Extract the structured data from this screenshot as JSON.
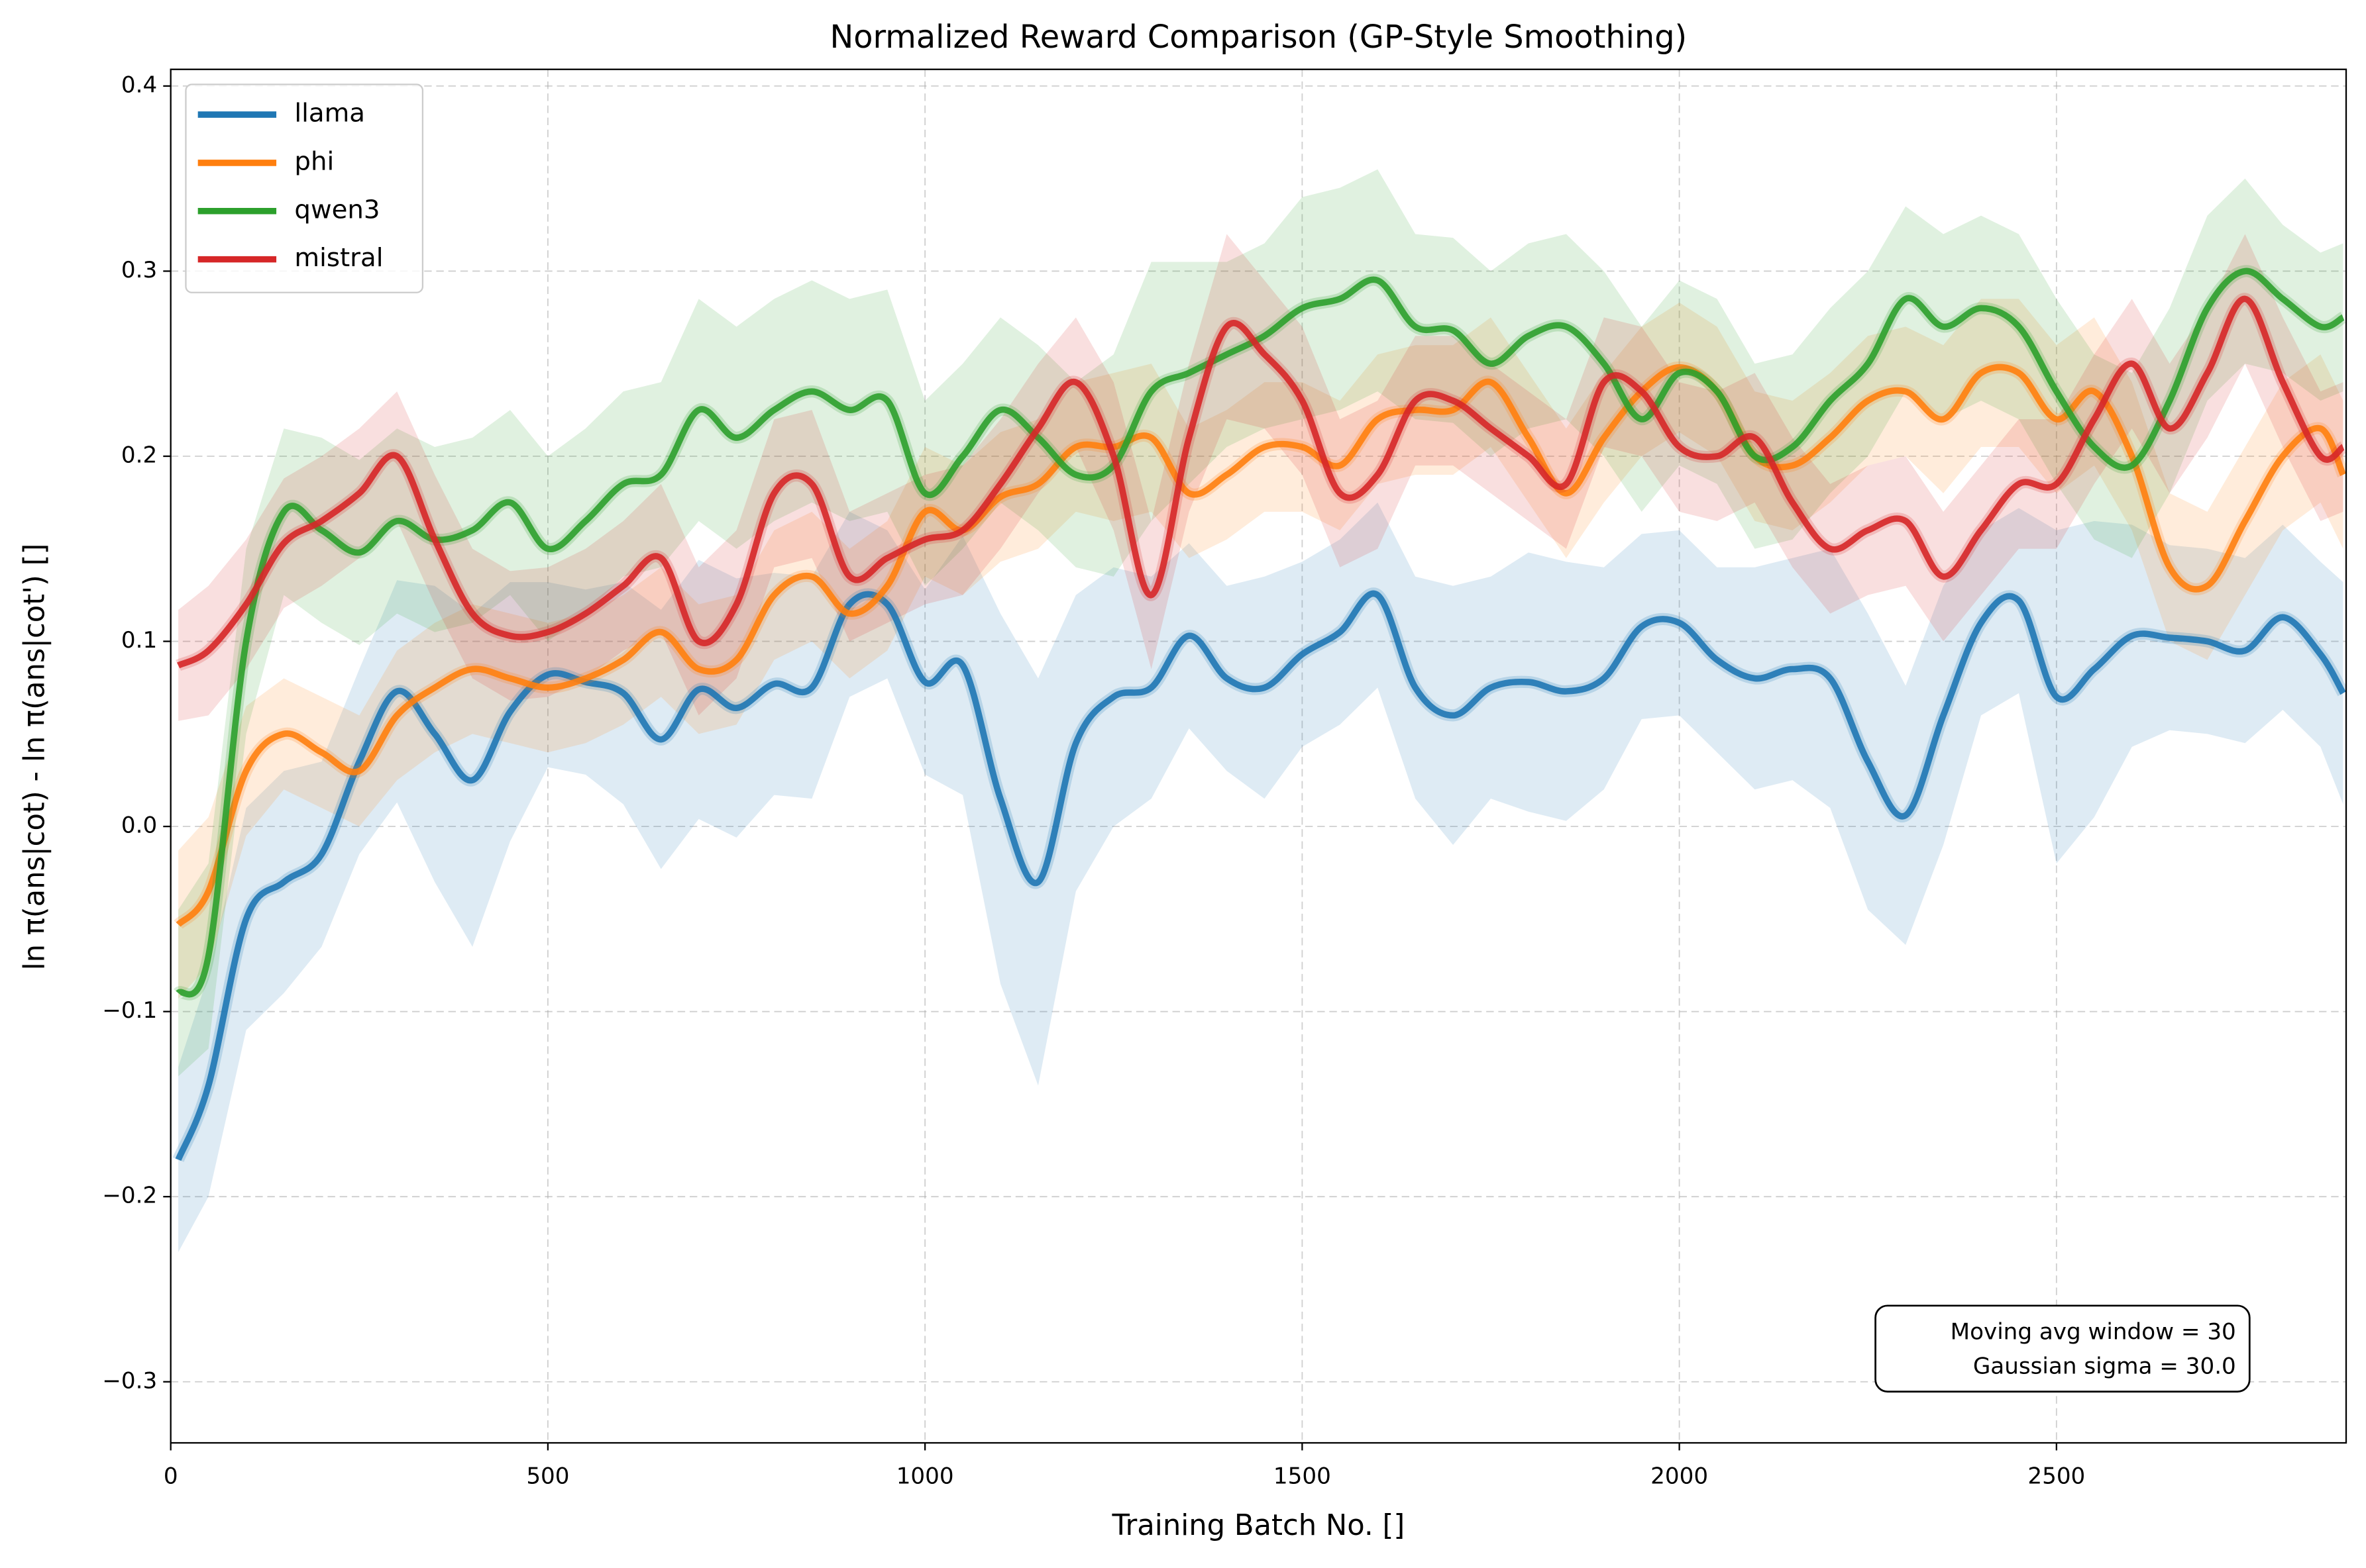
{
  "chart_data": {
    "type": "line",
    "title": "Normalized Reward Comparison (GP-Style Smoothing)",
    "xlabel": "Training Batch No. []",
    "ylabel": "ln π(ans|cot) - ln π(ans|cot') []",
    "annotations": [
      "Moving avg window = 30",
      "Gaussian sigma = 30.0"
    ],
    "x": [
      10,
      50,
      100,
      150,
      200,
      250,
      300,
      350,
      400,
      450,
      500,
      550,
      600,
      650,
      700,
      750,
      800,
      850,
      900,
      950,
      1000,
      1050,
      1100,
      1150,
      1200,
      1250,
      1300,
      1350,
      1400,
      1450,
      1500,
      1550,
      1600,
      1650,
      1700,
      1750,
      1800,
      1850,
      1900,
      1950,
      2000,
      2050,
      2100,
      2150,
      2200,
      2250,
      2300,
      2350,
      2400,
      2450,
      2500,
      2550,
      2600,
      2650,
      2700,
      2750,
      2800,
      2850,
      2880
    ],
    "series": [
      {
        "name": "llama",
        "color": "#1f77b4",
        "values": [
          -0.18,
          -0.14,
          -0.05,
          -0.03,
          -0.015,
          0.035,
          0.073,
          0.05,
          0.025,
          0.062,
          0.082,
          0.078,
          0.072,
          0.047,
          0.074,
          0.064,
          0.077,
          0.075,
          0.12,
          0.12,
          0.078,
          0.087,
          0.015,
          -0.03,
          0.045,
          0.07,
          0.075,
          0.103,
          0.08,
          0.075,
          0.093,
          0.105,
          0.125,
          0.075,
          0.06,
          0.075,
          0.078,
          0.073,
          0.08,
          0.108,
          0.11,
          0.09,
          0.08,
          0.085,
          0.08,
          0.035,
          0.006,
          0.06,
          0.11,
          0.122,
          0.07,
          0.085,
          0.103,
          0.102,
          0.1,
          0.095,
          0.113,
          0.093,
          0.072
        ],
        "error": [
          0.05,
          0.06,
          0.06,
          0.06,
          0.05,
          0.05,
          0.06,
          0.08,
          0.09,
          0.07,
          0.05,
          0.05,
          0.06,
          0.07,
          0.07,
          0.07,
          0.06,
          0.06,
          0.05,
          0.04,
          0.05,
          0.07,
          0.1,
          0.11,
          0.08,
          0.07,
          0.06,
          0.05,
          0.05,
          0.06,
          0.05,
          0.05,
          0.05,
          0.06,
          0.07,
          0.06,
          0.07,
          0.07,
          0.06,
          0.05,
          0.05,
          0.05,
          0.06,
          0.06,
          0.07,
          0.08,
          0.07,
          0.07,
          0.05,
          0.05,
          0.09,
          0.08,
          0.06,
          0.05,
          0.05,
          0.05,
          0.05,
          0.05,
          0.06
        ]
      },
      {
        "name": "phi",
        "color": "#ff7f0e",
        "values": [
          -0.053,
          -0.035,
          0.03,
          0.05,
          0.04,
          0.03,
          0.06,
          0.075,
          0.085,
          0.08,
          0.075,
          0.08,
          0.09,
          0.105,
          0.085,
          0.09,
          0.125,
          0.135,
          0.115,
          0.13,
          0.17,
          0.16,
          0.178,
          0.185,
          0.205,
          0.205,
          0.21,
          0.18,
          0.19,
          0.205,
          0.205,
          0.195,
          0.22,
          0.225,
          0.225,
          0.24,
          0.21,
          0.18,
          0.21,
          0.235,
          0.248,
          0.235,
          0.2,
          0.195,
          0.21,
          0.23,
          0.235,
          0.22,
          0.245,
          0.245,
          0.22,
          0.235,
          0.2,
          0.14,
          0.13,
          0.165,
          0.2,
          0.215,
          0.19
        ],
        "error": [
          0.04,
          0.04,
          0.035,
          0.03,
          0.03,
          0.03,
          0.035,
          0.035,
          0.035,
          0.035,
          0.035,
          0.035,
          0.035,
          0.035,
          0.035,
          0.035,
          0.035,
          0.035,
          0.035,
          0.035,
          0.035,
          0.035,
          0.035,
          0.035,
          0.035,
          0.04,
          0.04,
          0.035,
          0.035,
          0.035,
          0.035,
          0.035,
          0.035,
          0.035,
          0.035,
          0.035,
          0.035,
          0.035,
          0.035,
          0.035,
          0.035,
          0.035,
          0.035,
          0.035,
          0.035,
          0.035,
          0.035,
          0.04,
          0.04,
          0.04,
          0.04,
          0.04,
          0.04,
          0.04,
          0.04,
          0.04,
          0.04,
          0.04,
          0.04
        ]
      },
      {
        "name": "qwen3",
        "color": "#2ca02c",
        "values": [
          -0.09,
          -0.07,
          0.1,
          0.17,
          0.16,
          0.148,
          0.165,
          0.155,
          0.16,
          0.175,
          0.15,
          0.165,
          0.185,
          0.19,
          0.225,
          0.21,
          0.225,
          0.235,
          0.225,
          0.23,
          0.18,
          0.2,
          0.225,
          0.21,
          0.19,
          0.195,
          0.235,
          0.245,
          0.255,
          0.265,
          0.28,
          0.285,
          0.295,
          0.27,
          0.268,
          0.25,
          0.265,
          0.27,
          0.25,
          0.22,
          0.245,
          0.235,
          0.2,
          0.205,
          0.23,
          0.25,
          0.285,
          0.27,
          0.28,
          0.27,
          0.235,
          0.205,
          0.195,
          0.23,
          0.28,
          0.3,
          0.285,
          0.27,
          0.275
        ],
        "error": [
          0.045,
          0.05,
          0.05,
          0.045,
          0.05,
          0.05,
          0.05,
          0.05,
          0.05,
          0.05,
          0.05,
          0.05,
          0.05,
          0.05,
          0.06,
          0.06,
          0.06,
          0.06,
          0.06,
          0.06,
          0.05,
          0.05,
          0.05,
          0.05,
          0.05,
          0.06,
          0.07,
          0.06,
          0.05,
          0.05,
          0.06,
          0.06,
          0.06,
          0.05,
          0.05,
          0.05,
          0.05,
          0.05,
          0.05,
          0.05,
          0.05,
          0.05,
          0.05,
          0.05,
          0.05,
          0.05,
          0.05,
          0.05,
          0.05,
          0.05,
          0.05,
          0.05,
          0.05,
          0.05,
          0.05,
          0.05,
          0.04,
          0.04,
          0.04
        ]
      },
      {
        "name": "mistral",
        "color": "#d62728",
        "values": [
          0.087,
          0.095,
          0.12,
          0.153,
          0.165,
          0.18,
          0.2,
          0.155,
          0.115,
          0.103,
          0.105,
          0.115,
          0.13,
          0.145,
          0.1,
          0.12,
          0.18,
          0.185,
          0.135,
          0.145,
          0.155,
          0.16,
          0.185,
          0.215,
          0.24,
          0.2,
          0.125,
          0.21,
          0.27,
          0.255,
          0.23,
          0.18,
          0.19,
          0.23,
          0.23,
          0.215,
          0.2,
          0.185,
          0.24,
          0.235,
          0.205,
          0.2,
          0.21,
          0.175,
          0.15,
          0.16,
          0.165,
          0.135,
          0.16,
          0.185,
          0.185,
          0.22,
          0.25,
          0.215,
          0.245,
          0.285,
          0.24,
          0.2,
          0.205
        ],
        "error": [
          0.03,
          0.035,
          0.035,
          0.035,
          0.035,
          0.035,
          0.035,
          0.035,
          0.035,
          0.035,
          0.035,
          0.035,
          0.035,
          0.04,
          0.04,
          0.04,
          0.04,
          0.04,
          0.035,
          0.035,
          0.035,
          0.035,
          0.035,
          0.035,
          0.035,
          0.04,
          0.04,
          0.04,
          0.05,
          0.04,
          0.04,
          0.04,
          0.04,
          0.035,
          0.035,
          0.035,
          0.035,
          0.035,
          0.035,
          0.035,
          0.035,
          0.035,
          0.035,
          0.035,
          0.035,
          0.035,
          0.035,
          0.035,
          0.035,
          0.035,
          0.035,
          0.035,
          0.035,
          0.035,
          0.035,
          0.035,
          0.035,
          0.035,
          0.035
        ]
      }
    ],
    "xlim": [
      0,
      2884
    ],
    "ylim": [
      -0.333,
      0.409
    ],
    "xticks": [
      0,
      500,
      1000,
      1500,
      2000,
      2500
    ],
    "yticks": [
      {
        "value": -0.3,
        "label": "−0.3"
      },
      {
        "value": -0.2,
        "label": "−0.2"
      },
      {
        "value": -0.1,
        "label": "−0.1"
      },
      {
        "value": 0.0,
        "label": "0.0"
      },
      0.1,
      0.2,
      0.3,
      0.4
    ],
    "grid": true,
    "legend": "upper left"
  }
}
